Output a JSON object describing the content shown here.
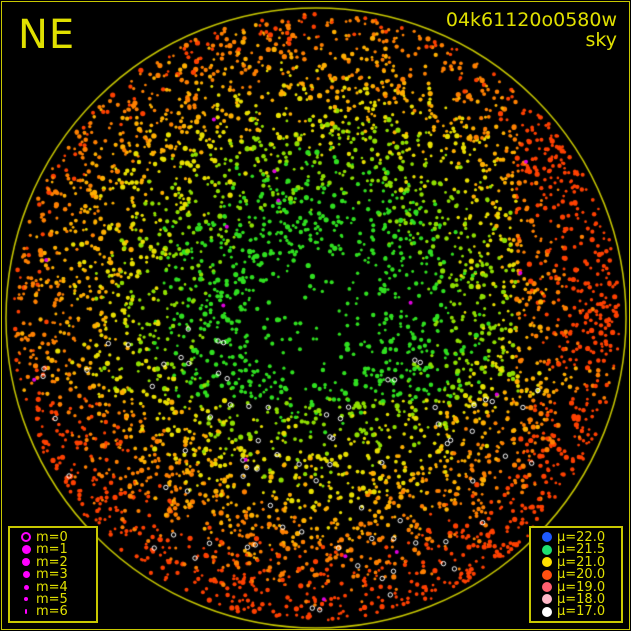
{
  "header": {
    "direction": "NE",
    "frame_id": "04k61120o0580w",
    "mode": "sky"
  },
  "magnitude_legend": [
    {
      "label": "m=0",
      "color": "#ff00ff",
      "style": "ring"
    },
    {
      "label": "m=1",
      "color": "#ff00ff",
      "style": "filled"
    },
    {
      "label": "m=2",
      "color": "#ff00ff",
      "style": "filled"
    },
    {
      "label": "m=3",
      "color": "#ff00ff",
      "style": "filled"
    },
    {
      "label": "m=4",
      "color": "#ff00ff",
      "style": "filled"
    },
    {
      "label": "m=5",
      "color": "#ff00ff",
      "style": "filled"
    },
    {
      "label": "m=6",
      "color": "#ff00ff",
      "style": "filled"
    }
  ],
  "brightness_legend": [
    {
      "label": "μ=22.0",
      "color": "#1e5aff"
    },
    {
      "label": "μ=21.5",
      "color": "#1ee070"
    },
    {
      "label": "μ=21.0",
      "color": "#ffe000"
    },
    {
      "label": "μ=20.0",
      "color": "#ff5010"
    },
    {
      "label": "μ=19.0",
      "color": "#ff6070"
    },
    {
      "label": "μ=18.0",
      "color": "#ffb8c8"
    },
    {
      "label": "μ=17.0",
      "color": "#ffffff"
    }
  ],
  "colors": {
    "frame": "#c8c800",
    "horizon": "#c8c800",
    "background": "#000000"
  }
}
